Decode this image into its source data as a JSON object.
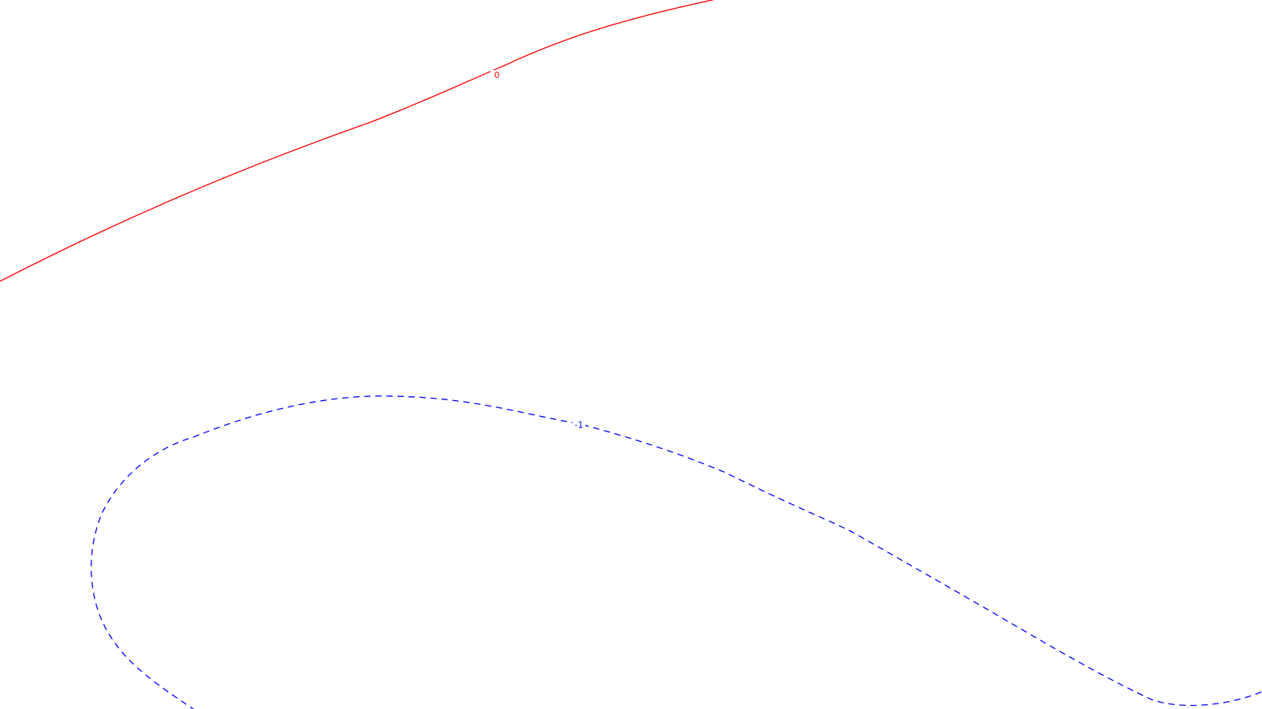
{
  "chart_data": {
    "type": "contour",
    "title": "",
    "xlabel": "",
    "ylabel": "",
    "grid": false,
    "legend": "none",
    "series": [
      {
        "level": "0",
        "label": "0",
        "color": "#ff0000",
        "linestyle": "solid"
      },
      {
        "level": "-1",
        "label": "-1",
        "color": "#0000ff",
        "linestyle": "dashed"
      }
    ]
  }
}
